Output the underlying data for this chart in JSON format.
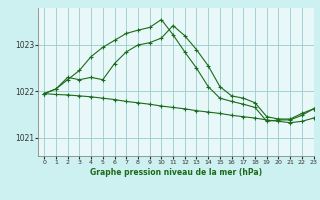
{
  "title": "Graphe pression niveau de la mer (hPa)",
  "background_color": "#cdf0f0",
  "plot_bg": "#e8f8f8",
  "grid_color": "#99cccc",
  "line_color": "#1a6b1a",
  "xlim": [
    -0.5,
    23
  ],
  "ylim": [
    1020.6,
    1023.8
  ],
  "yticks": [
    1021,
    1022,
    1023
  ],
  "xticks": [
    0,
    1,
    2,
    3,
    4,
    5,
    6,
    7,
    8,
    9,
    10,
    11,
    12,
    13,
    14,
    15,
    16,
    17,
    18,
    19,
    20,
    21,
    22,
    23
  ],
  "hours": [
    0,
    1,
    2,
    3,
    4,
    5,
    6,
    7,
    8,
    9,
    10,
    11,
    12,
    13,
    14,
    15,
    16,
    17,
    18,
    19,
    20,
    21,
    22,
    23
  ],
  "line1": [
    1021.95,
    1022.05,
    1022.3,
    1022.25,
    1022.3,
    1022.25,
    1022.6,
    1022.85,
    1023.0,
    1023.05,
    1023.15,
    1023.42,
    1023.2,
    1022.9,
    1022.55,
    1022.1,
    1021.9,
    1021.85,
    1021.75,
    1021.45,
    1021.4,
    1021.4,
    1021.52,
    1021.62
  ],
  "line2": [
    1021.95,
    1022.05,
    1022.25,
    1022.45,
    1022.75,
    1022.95,
    1023.1,
    1023.25,
    1023.32,
    1023.38,
    1023.55,
    1023.22,
    1022.85,
    1022.5,
    1022.1,
    1021.85,
    1021.78,
    1021.72,
    1021.65,
    1021.35,
    1021.38,
    1021.38,
    1021.48,
    1021.62
  ],
  "line3": [
    1021.95,
    1021.93,
    1021.92,
    1021.9,
    1021.88,
    1021.85,
    1021.82,
    1021.78,
    1021.75,
    1021.72,
    1021.68,
    1021.65,
    1021.62,
    1021.58,
    1021.55,
    1021.52,
    1021.48,
    1021.45,
    1021.42,
    1021.38,
    1021.35,
    1021.32,
    1021.35,
    1021.42
  ]
}
